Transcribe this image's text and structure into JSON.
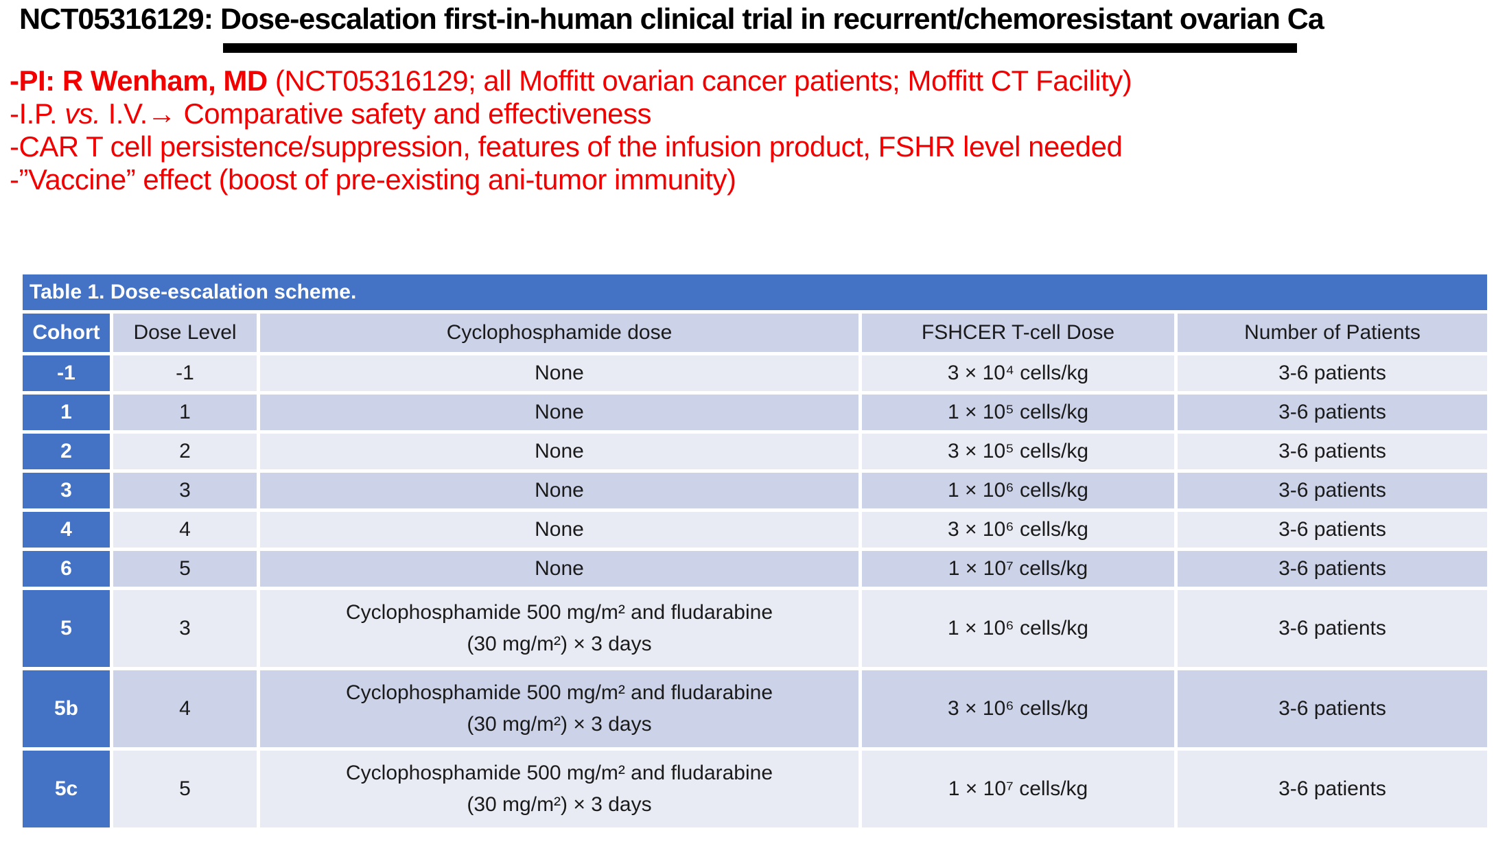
{
  "slide": {
    "title": "NCT05316129: Dose-escalation first-in-human clinical trial in recurrent/chemoresistant ovarian Ca"
  },
  "bullets": {
    "pi_bold": "-PI: R Wenham, MD",
    "pi_rest": " (NCT05316129; all Moffitt ovarian cancer patients; Moffitt CT Facility)",
    "route_pre": "-I.P. ",
    "route_italic": "vs.",
    "route_post": " I.V.→ Comparative safety and effectiveness",
    "car_t": "-CAR T cell persistence/suppression, features of the infusion product, FSHR level needed",
    "vaccine": "-”Vaccine” effect (boost of pre-existing ani-tumor immunity)"
  },
  "table": {
    "caption": "Table 1. Dose-escalation scheme.",
    "columns": [
      "Cohort",
      "Dose Level",
      "Cyclophosphamide dose",
      "FSHCER T-cell Dose",
      "Number of Patients"
    ],
    "rows": [
      {
        "cohort": "-1",
        "dose_level": "-1",
        "cyclo_line1": "None",
        "tcell": "3 × 10⁴ cells/kg",
        "patients": "3-6 patients"
      },
      {
        "cohort": "1",
        "dose_level": "1",
        "cyclo_line1": "None",
        "tcell": "1 × 10⁵ cells/kg",
        "patients": "3-6 patients"
      },
      {
        "cohort": "2",
        "dose_level": "2",
        "cyclo_line1": "None",
        "tcell": "3 × 10⁵ cells/kg",
        "patients": "3-6 patients"
      },
      {
        "cohort": "3",
        "dose_level": "3",
        "cyclo_line1": "None",
        "tcell": "1 × 10⁶ cells/kg",
        "patients": "3-6 patients"
      },
      {
        "cohort": "4",
        "dose_level": "4",
        "cyclo_line1": "None",
        "tcell": "3 × 10⁶ cells/kg",
        "patients": "3-6 patients"
      },
      {
        "cohort": "6",
        "dose_level": "5",
        "cyclo_line1": "None",
        "tcell": "1 × 10⁷ cells/kg",
        "patients": "3-6 patients"
      },
      {
        "cohort": "5",
        "dose_level": "3",
        "cyclo_line1": "Cyclophosphamide 500 mg/m² and fludarabine",
        "cyclo_line2": "(30 mg/m²) × 3 days",
        "tcell": "1 × 10⁶ cells/kg",
        "patients": "3-6 patients"
      },
      {
        "cohort": "5b",
        "dose_level": "4",
        "cyclo_line1": "Cyclophosphamide 500 mg/m² and fludarabine",
        "cyclo_line2": "(30 mg/m²) × 3 days",
        "tcell": "3 × 10⁶ cells/kg",
        "patients": "3-6 patients"
      },
      {
        "cohort": "5c",
        "dose_level": "5",
        "cyclo_line1": "Cyclophosphamide 500 mg/m² and fludarabine",
        "cyclo_line2": "(30 mg/m²) × 3 days",
        "tcell": "1 × 10⁷ cells/kg",
        "patients": "3-6 patients"
      }
    ]
  },
  "colors": {
    "accent_blue": "#4472C4",
    "band_light": "#E9EBF4",
    "band_dark": "#CCD3E9",
    "highlight_red": "#F20000",
    "title_black": "#000000"
  }
}
